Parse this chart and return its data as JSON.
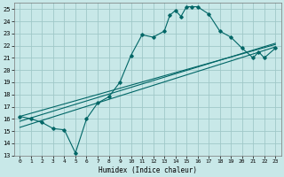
{
  "xlabel": "Humidex (Indice chaleur)",
  "background_color": "#c8e8e8",
  "grid_color": "#a0c8c8",
  "line_color": "#006666",
  "xlim": [
    -0.5,
    23.5
  ],
  "ylim": [
    13,
    25.5
  ],
  "xticks": [
    0,
    1,
    2,
    3,
    4,
    5,
    6,
    7,
    8,
    9,
    10,
    11,
    12,
    13,
    14,
    15,
    16,
    17,
    18,
    19,
    20,
    21,
    22,
    23
  ],
  "yticks": [
    13,
    14,
    15,
    16,
    17,
    18,
    19,
    20,
    21,
    22,
    23,
    24,
    25
  ],
  "curve_x": [
    0,
    1,
    2,
    3,
    4,
    5,
    6,
    7,
    8,
    9,
    10,
    11,
    12,
    13,
    13.5,
    14,
    14.5,
    15,
    15.5,
    16,
    17,
    18,
    19,
    20,
    21,
    21.5,
    22,
    23
  ],
  "curve_y": [
    16.2,
    16.0,
    15.7,
    15.2,
    15.1,
    13.2,
    16.0,
    17.3,
    17.8,
    19.0,
    21.2,
    22.9,
    22.7,
    23.2,
    24.5,
    24.9,
    24.4,
    25.2,
    25.2,
    25.2,
    24.6,
    23.2,
    22.7,
    21.8,
    21.0,
    21.5,
    21.0,
    21.8
  ],
  "line1_x": [
    0,
    23
  ],
  "line1_y": [
    15.3,
    21.9
  ],
  "line2_x": [
    0,
    23
  ],
  "line2_y": [
    15.8,
    22.2
  ],
  "line3_x": [
    0,
    23
  ],
  "line3_y": [
    16.2,
    22.1
  ]
}
